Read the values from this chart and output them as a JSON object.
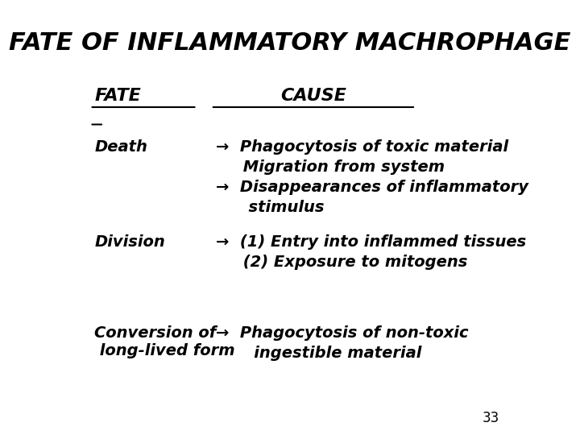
{
  "title": "FATE OF INFLAMMATORY MACHROPHAGE",
  "col_fate": "FATE",
  "col_cause": "CAUSE",
  "bg_color": "#ffffff",
  "text_color": "#000000",
  "title_fontsize": 22,
  "header_fontsize": 16,
  "body_fontsize": 14,
  "page_number": "33",
  "rows": [
    {
      "fate": "Death",
      "causes": [
        "→  Phagocytosis of toxic material\n     Migration from system",
        "→  Disappearances of inflammatory\n      stimulus"
      ]
    },
    {
      "fate": "Division",
      "causes": [
        "→  (1) Entry into inflammed tissues\n     (2) Exposure to mitogens"
      ]
    },
    {
      "fate": "Conversion of\n long-lived form",
      "causes": [
        "→  Phagocytosis of non-toxic\n       ingestible material"
      ]
    }
  ]
}
